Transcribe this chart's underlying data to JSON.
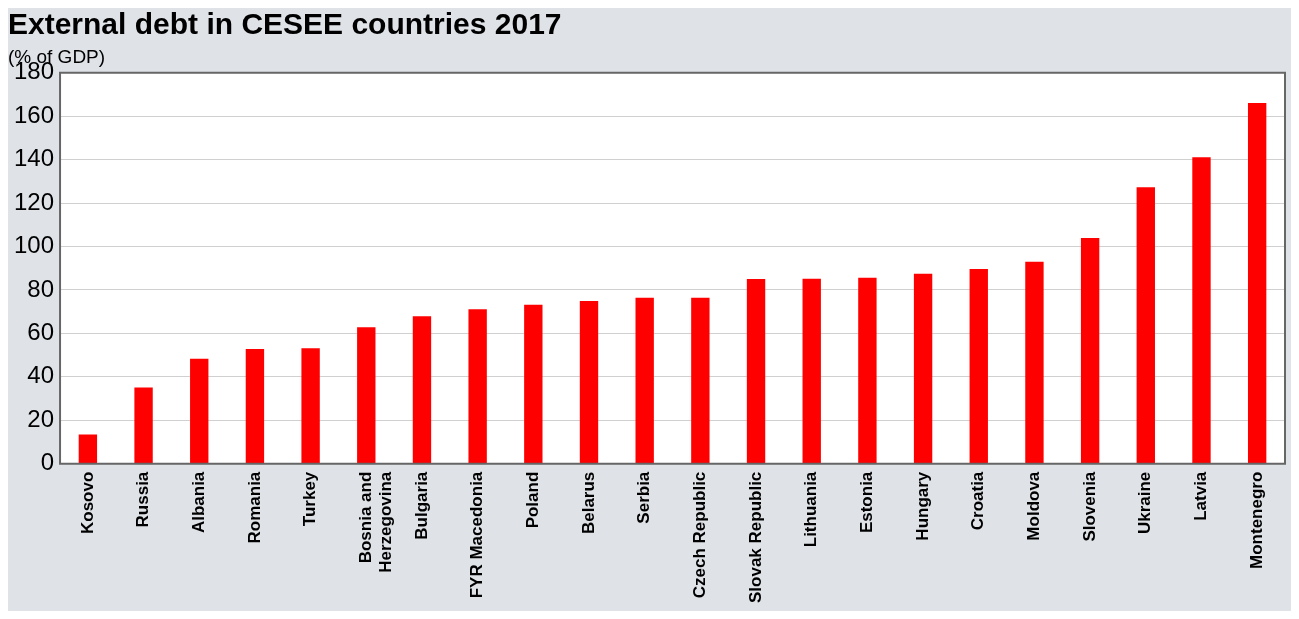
{
  "chart_data": {
    "type": "bar",
    "title": "External debt in CESEE countries 2017",
    "subtitle": "(% of GDP)",
    "categories": [
      "Kosovo",
      "Russia",
      "Albania",
      "Romania",
      "Turkey",
      "Bosnia and Herzegovina",
      "Bulgaria",
      "FYR Macedonia",
      "Poland",
      "Belarus",
      "Serbia",
      "Czech Republic",
      "Slovak Republic",
      "Lithuania",
      "Estonia",
      "Hungary",
      "Croatia",
      "Moldova",
      "Slovenia",
      "Ukraine",
      "Latvia",
      "Montenegro"
    ],
    "values": [
      13.4,
      35.1,
      48.3,
      52.8,
      53.2,
      62.8,
      67.9,
      71.1,
      73.2,
      74.9,
      76.4,
      76.4,
      85.0,
      85.2,
      85.6,
      87.5,
      89.7,
      93.0,
      103.9,
      127.3,
      141.1,
      166.1
    ],
    "color": "#ff0000",
    "ylim": [
      0,
      180
    ],
    "yticks": [
      0,
      20,
      40,
      60,
      80,
      100,
      120,
      140,
      160,
      180
    ],
    "grid": "y",
    "legend": false
  }
}
